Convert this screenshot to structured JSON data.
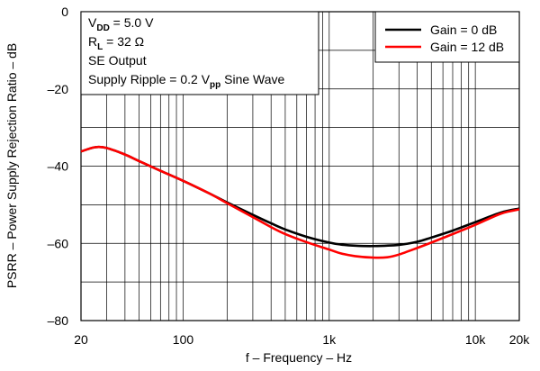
{
  "chart_data": {
    "type": "line",
    "xlabel": "f – Frequency – Hz",
    "ylabel": "PSRR – Power Supply Rejection Ratio – dB",
    "x_scale": "log",
    "xlim": [
      20,
      20000
    ],
    "ylim": [
      -80,
      0
    ],
    "x_ticks": [
      {
        "value": 20,
        "label": "20"
      },
      {
        "value": 100,
        "label": "100"
      },
      {
        "value": 1000,
        "label": "1k"
      },
      {
        "value": 10000,
        "label": "10k"
      },
      {
        "value": 20000,
        "label": "20k"
      }
    ],
    "y_ticks": [
      {
        "value": 0,
        "label": "0"
      },
      {
        "value": -20,
        "label": "–20"
      },
      {
        "value": -40,
        "label": "–40"
      },
      {
        "value": -60,
        "label": "–60"
      },
      {
        "value": -80,
        "label": "–80"
      }
    ],
    "grid": true,
    "legend_position": "top-right",
    "annotations": [
      {
        "main": "V",
        "sub": "DD",
        "rest": " = 5.0 V"
      },
      {
        "main": "R",
        "sub": "L",
        "rest": " = 32 Ω"
      },
      {
        "main": "SE Output",
        "sub": "",
        "rest": ""
      },
      {
        "main": "Supply Ripple = 0.2 V",
        "sub": "pp",
        "rest": " Sine Wave"
      }
    ],
    "series": [
      {
        "name": "Gain = 0 dB",
        "color": "#000000",
        "x": [
          20,
          25,
          30,
          40,
          50,
          70,
          100,
          150,
          200,
          300,
          400,
          500,
          700,
          1000,
          1200,
          1500,
          2000,
          3000,
          4000,
          5000,
          7000,
          10000,
          15000,
          20000
        ],
        "y": [
          -36.2,
          -35.1,
          -35.3,
          -37.0,
          -38.7,
          -41.2,
          -43.8,
          -47.0,
          -49.4,
          -52.6,
          -54.8,
          -56.4,
          -58.3,
          -59.8,
          -60.3,
          -60.6,
          -60.7,
          -60.4,
          -59.6,
          -58.5,
          -56.7,
          -54.5,
          -52.0,
          -51.0
        ]
      },
      {
        "name": "Gain = 12 dB",
        "color": "#ff0000",
        "x": [
          20,
          25,
          30,
          40,
          50,
          70,
          100,
          150,
          200,
          300,
          400,
          500,
          700,
          1000,
          1200,
          1500,
          2000,
          2500,
          3000,
          4000,
          5000,
          7000,
          10000,
          15000,
          20000
        ],
        "y": [
          -36.2,
          -35.1,
          -35.3,
          -37.0,
          -38.7,
          -41.2,
          -43.8,
          -47.0,
          -49.6,
          -53.2,
          -55.8,
          -57.6,
          -59.7,
          -61.6,
          -62.6,
          -63.3,
          -63.7,
          -63.6,
          -62.9,
          -61.2,
          -59.8,
          -57.6,
          -55.2,
          -52.3,
          -51.2
        ]
      }
    ]
  }
}
